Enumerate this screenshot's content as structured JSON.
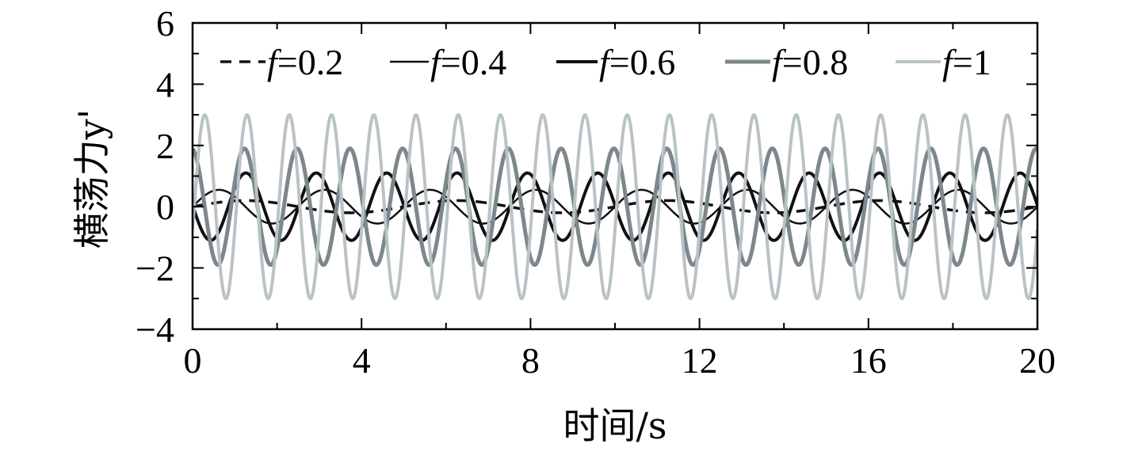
{
  "chart_data": {
    "type": "line",
    "xlabel": "时间/s",
    "ylabel": "横荡力y'",
    "xlim": [
      0,
      20
    ],
    "ylim": [
      -4,
      6
    ],
    "xticks": [
      0,
      4,
      8,
      12,
      16,
      20
    ],
    "yticks": [
      -4,
      -2,
      0,
      2,
      4,
      6
    ],
    "ytick_labels": [
      "−4",
      "−2",
      "0",
      "2",
      "4",
      "6"
    ],
    "grid": false,
    "legend_position": "top",
    "series": [
      {
        "name": "f=0.2",
        "legend_prefix": "f",
        "legend_suffix": "=0.2",
        "frequency": 0.2,
        "amplitude": 0.2,
        "phase": 0.0,
        "style": "dashed",
        "color": "#111111",
        "width": 3.5,
        "x": [
          0,
          1.25,
          2.5,
          3.75,
          5,
          6.25,
          7.5,
          8.75,
          10,
          11.25,
          12.5,
          13.75,
          15,
          16.25,
          17.5,
          18.75,
          20
        ],
        "y": [
          0.0,
          0.2,
          0.0,
          -0.2,
          0.0,
          0.2,
          0.0,
          -0.2,
          0.0,
          0.2,
          0.0,
          -0.2,
          0.0,
          0.2,
          0.0,
          -0.2,
          0.0
        ]
      },
      {
        "name": "f=0.4",
        "legend_prefix": "f",
        "legend_suffix": "=0.4",
        "frequency": 0.4,
        "amplitude": 0.55,
        "phase": 0.0,
        "style": "solid",
        "color": "#111111",
        "width": 2.5,
        "x": [
          0,
          0.625,
          1.25,
          1.875,
          2.5,
          3.125,
          3.75,
          4.375,
          5
        ],
        "y": [
          0.0,
          0.55,
          0.0,
          -0.55,
          0.0,
          0.55,
          0.0,
          -0.55,
          0.0
        ]
      },
      {
        "name": "f=0.6",
        "legend_prefix": "f",
        "legend_suffix": "=0.6",
        "frequency": 0.6,
        "amplitude": 1.1,
        "phase": 3.1,
        "style": "solid",
        "color": "#111111",
        "width": 4,
        "x": [
          0,
          0.42,
          0.83,
          1.25,
          1.67
        ],
        "y": [
          0.0,
          -1.1,
          0.0,
          1.1,
          0.0
        ]
      },
      {
        "name": "f=0.8",
        "legend_prefix": "f",
        "legend_suffix": "=0.8",
        "frequency": 0.8,
        "amplitude": 1.9,
        "phase": 1.7,
        "style": "solid",
        "color": "#7d878c",
        "width": 5,
        "x": [
          0,
          0.31,
          0.63,
          0.94,
          1.25
        ],
        "y": [
          1.9,
          0.0,
          -1.9,
          0.0,
          1.9
        ]
      },
      {
        "name": "f=1",
        "legend_prefix": "f",
        "legend_suffix": "=1",
        "frequency": 1.0,
        "amplitude": 3.0,
        "phase": -0.25,
        "style": "solid",
        "color": "#b9c3c6",
        "width": 4,
        "x": [
          0,
          0.25,
          0.5,
          0.75,
          1.0
        ],
        "y": [
          -1.5,
          2.9,
          1.5,
          -2.9,
          -1.5
        ]
      }
    ]
  }
}
